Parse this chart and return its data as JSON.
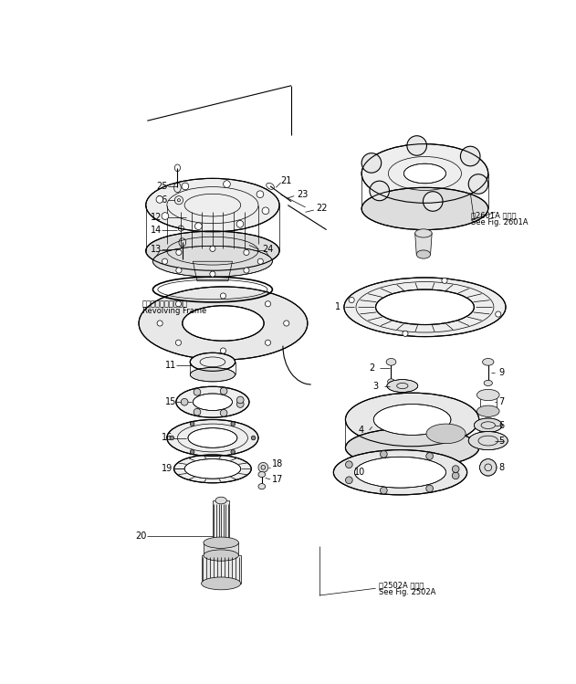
{
  "bg_color": "#ffffff",
  "lc": "#000000",
  "figsize": [
    6.31,
    7.49
  ],
  "dpi": 100,
  "lw_thin": 0.5,
  "lw_med": 0.8,
  "lw_thick": 1.2,
  "ref_2601": [
    "第2601A 図参照",
    "See Fig. 2601A"
  ],
  "ref_2502": [
    "第2502A 図参照",
    "See Fig. 2502A"
  ],
  "revolving": [
    "レホルヒングフレーム",
    "Revolving Frame"
  ]
}
